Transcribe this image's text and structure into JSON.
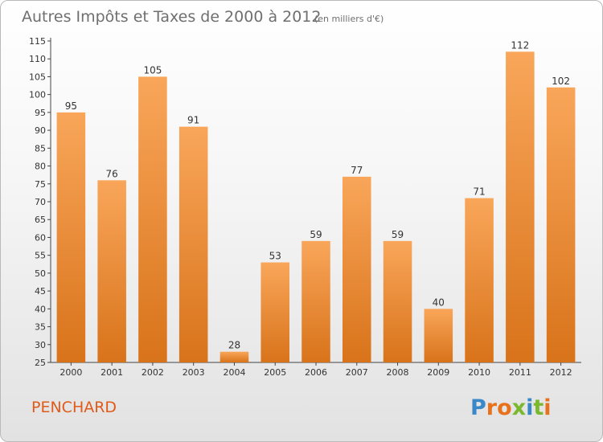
{
  "chart_data": {
    "type": "bar",
    "title": "Autres Impôts et Taxes de 2000 à 2012",
    "subtitle": "(en milliers d'€)",
    "xlabel": "",
    "ylabel": "",
    "categories": [
      "2000",
      "2001",
      "2002",
      "2003",
      "2004",
      "2005",
      "2006",
      "2007",
      "2008",
      "2009",
      "2010",
      "2011",
      "2012"
    ],
    "values": [
      95,
      76,
      105,
      91,
      28,
      53,
      59,
      77,
      59,
      40,
      71,
      112,
      102
    ],
    "ylim": [
      25,
      115
    ],
    "yticks": [
      25,
      30,
      35,
      40,
      45,
      50,
      55,
      60,
      65,
      70,
      75,
      80,
      85,
      90,
      95,
      100,
      105,
      110,
      115
    ],
    "grid": false,
    "legend": "none",
    "bar_color_light": "#f9a65a",
    "bar_color_dark": "#d8731a"
  },
  "commune": "PENCHARD",
  "logo": {
    "text": "Proxiti",
    "letter_colors": [
      "#3a88c8",
      "#e8721c",
      "#e8721c",
      "#7ab82e",
      "#3a88c8",
      "#7ab82e",
      "#e8721c"
    ]
  }
}
